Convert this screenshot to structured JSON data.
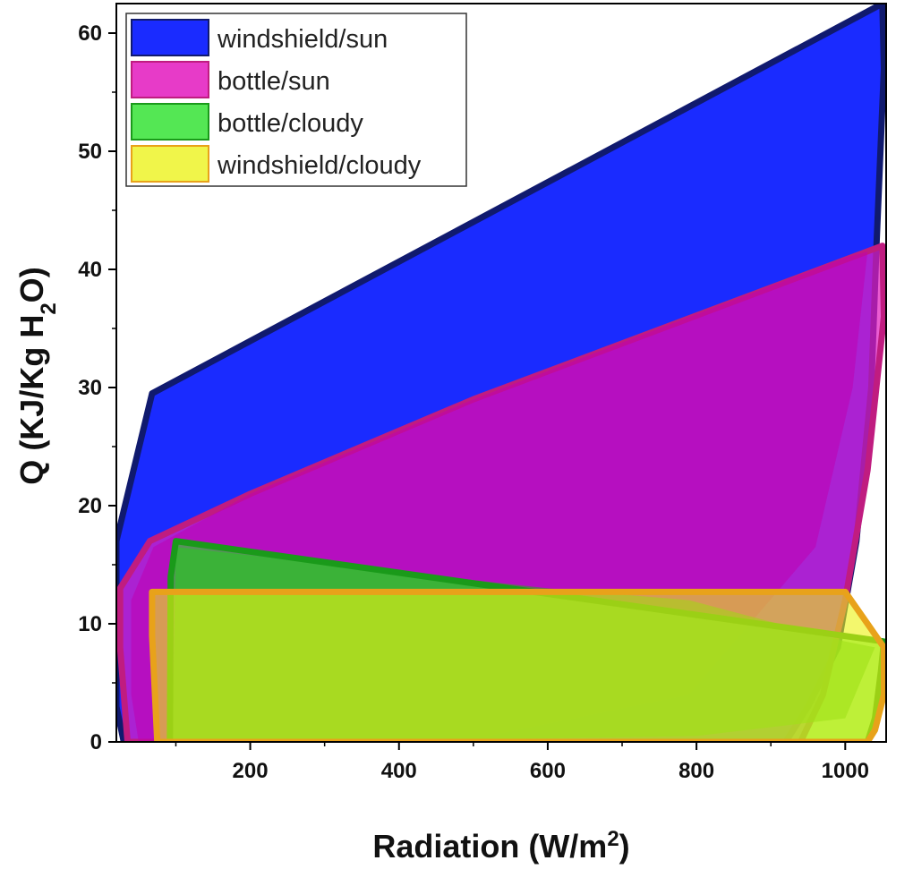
{
  "chart_data": {
    "type": "area",
    "title": "",
    "xlabel": "Radiation (W/m2)",
    "ylabel": "Q (KJ/Kg H2O)",
    "xlim": [
      20,
      1055
    ],
    "ylim": [
      0,
      62.5
    ],
    "x_ticks": [
      200,
      400,
      600,
      800,
      1000
    ],
    "y_ticks": [
      0,
      10,
      20,
      30,
      40,
      50,
      60
    ],
    "grid": false,
    "legend_position": "top-left",
    "series": [
      {
        "name": "windshield/sun",
        "fill": "#1a2bff",
        "stroke": "#101a6e",
        "opacity": 1,
        "polygon": [
          [
            20,
            17
          ],
          [
            68,
            29.5
          ],
          [
            1050,
            62.5
          ],
          [
            1052,
            57
          ],
          [
            1042,
            42
          ],
          [
            1035,
            30
          ],
          [
            1015,
            17
          ],
          [
            990,
            8
          ],
          [
            950,
            3
          ],
          [
            920,
            0
          ],
          [
            30,
            0
          ],
          [
            20,
            3
          ]
        ]
      },
      {
        "name": "bottle/sun",
        "fill": "#e31ec0",
        "stroke": "#c01c80",
        "opacity": 0.72,
        "polygon": [
          [
            25,
            13
          ],
          [
            65,
            17
          ],
          [
            200,
            21
          ],
          [
            500,
            29
          ],
          [
            1050,
            42
          ],
          [
            1052,
            36
          ],
          [
            1030,
            23
          ],
          [
            1000,
            12
          ],
          [
            970,
            4
          ],
          [
            940,
            0
          ],
          [
            35,
            0
          ],
          [
            25,
            8
          ]
        ]
      },
      {
        "name": "bottle/cloudy",
        "fill": "#20e020",
        "stroke": "#1a9a1a",
        "opacity": 0.62,
        "polygon": [
          [
            100,
            17
          ],
          [
            1052,
            8.5
          ],
          [
            1048,
            6
          ],
          [
            1040,
            2
          ],
          [
            1030,
            0
          ],
          [
            92,
            0
          ],
          [
            93,
            14
          ]
        ]
      },
      {
        "name": "windshield/cloudy",
        "fill": "#ecf214",
        "stroke": "#e8a21a",
        "opacity": 0.62,
        "polygon": [
          [
            68,
            12.7
          ],
          [
            1000,
            12.7
          ],
          [
            1030,
            10
          ],
          [
            1052,
            8
          ],
          [
            1052,
            4
          ],
          [
            1040,
            1
          ],
          [
            1030,
            0
          ],
          [
            75,
            0
          ],
          [
            68,
            9
          ]
        ]
      }
    ],
    "extra_regions": [
      {
        "fill": "#c000b0",
        "opacity": 0.55,
        "polygon": [
          [
            40,
            12
          ],
          [
            70,
            16.5
          ],
          [
            200,
            21
          ],
          [
            500,
            29
          ],
          [
            1000,
            41
          ],
          [
            1030,
            41.5
          ],
          [
            1010,
            30
          ],
          [
            960,
            16.5
          ],
          [
            790,
            4
          ],
          [
            480,
            0
          ],
          [
            50,
            0
          ],
          [
            40,
            4
          ]
        ]
      },
      {
        "fill": "#30a020",
        "opacity": 0.6,
        "polygon": [
          [
            100,
            16.5
          ],
          [
            600,
            13
          ],
          [
            790,
            12
          ],
          [
            1000,
            8.5
          ],
          [
            1040,
            8
          ],
          [
            1000,
            2
          ],
          [
            800,
            0.5
          ],
          [
            300,
            0
          ],
          [
            95,
            0
          ]
        ]
      }
    ]
  }
}
